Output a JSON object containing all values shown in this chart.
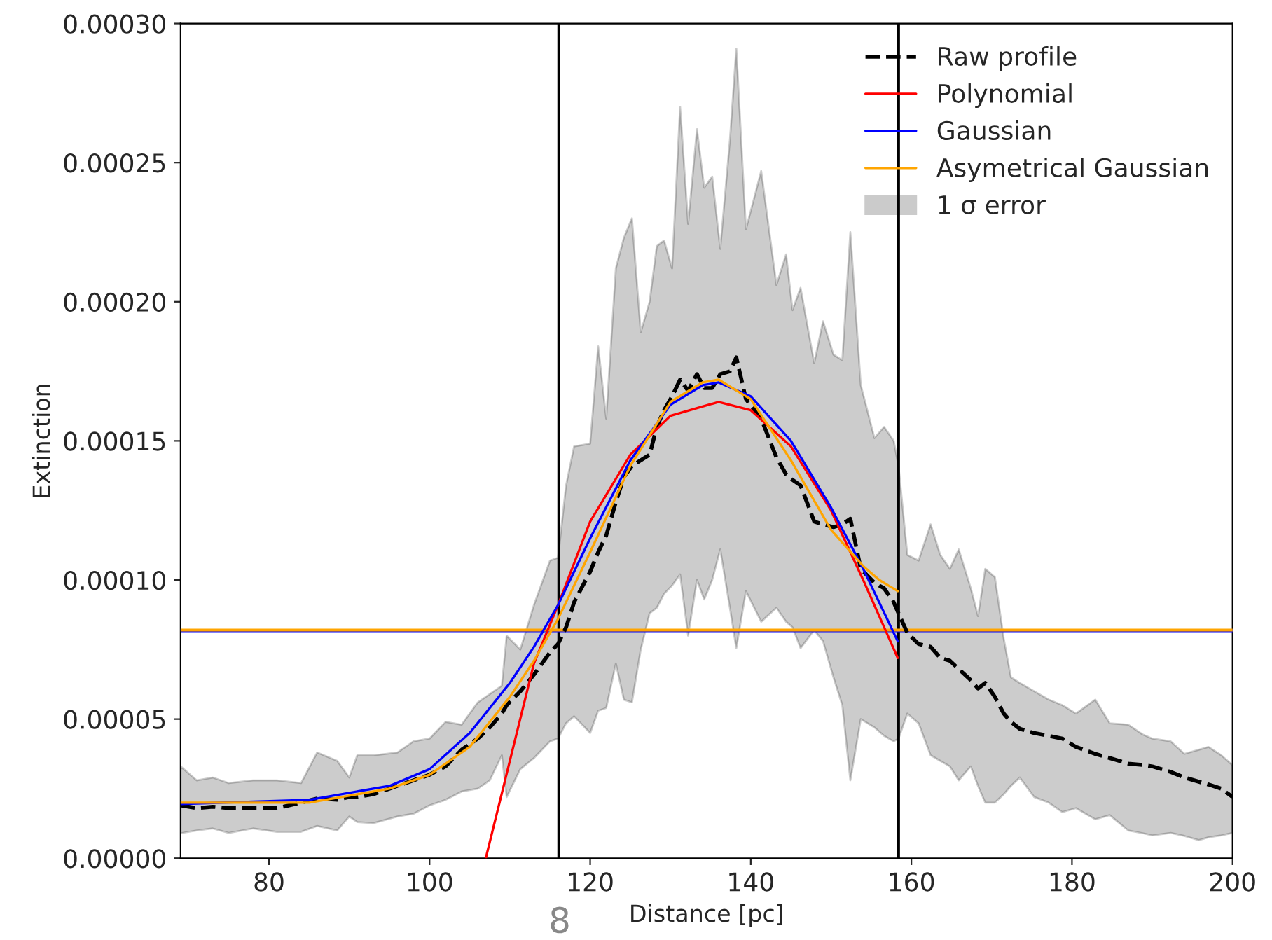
{
  "chart_data": {
    "type": "line",
    "xlabel": "Distance [pc]",
    "ylabel": "Extinction",
    "xlim": [
      69,
      200
    ],
    "xticks": [
      80,
      100,
      120,
      140,
      160,
      180,
      200
    ],
    "ylim": [
      0,
      0.0003
    ],
    "yticks": [
      {
        "value": 0,
        "label": "0.00000"
      },
      {
        "value": 5e-05,
        "label": "0.00005"
      },
      {
        "value": 0.0001,
        "label": "0.00010"
      },
      {
        "value": 0.00015,
        "label": "0.00015"
      },
      {
        "value": 0.0002,
        "label": "0.00020"
      },
      {
        "value": 0.00025,
        "label": "0.00025"
      },
      {
        "value": 0.0003,
        "label": "0.00030"
      }
    ],
    "grid": false,
    "legend": "top right",
    "marker": "none",
    "series": [
      {
        "name": "Raw profile",
        "line_style": "dashed",
        "color": "#000000",
        "x": [
          69,
          71,
          73,
          75,
          78,
          81,
          84,
          86,
          88.5,
          90,
          91,
          93,
          96,
          98,
          100,
          102,
          104,
          106,
          107.5,
          109,
          109.6,
          111.3,
          113,
          115,
          116,
          117,
          118,
          120,
          121,
          122,
          123.2,
          124.2,
          125.2,
          126.3,
          127.4,
          128.3,
          129.2,
          130.2,
          131.2,
          132.2,
          133.3,
          134.2,
          135.2,
          136.2,
          137.4,
          138.2,
          139.4,
          141.3,
          143.2,
          144.4,
          145.2,
          146.2,
          147.9,
          149.0,
          150.3,
          151.4,
          152.4,
          153.7,
          155.4,
          156.6,
          157.8,
          158.4,
          159.5,
          160.9,
          162.4,
          163.6,
          164.8,
          165.9,
          167.4,
          168.3,
          169.2,
          170.4,
          171.5,
          172.4,
          173.5,
          175.3,
          177.1,
          178.8,
          180.5,
          182.9,
          184.7,
          187,
          188.8,
          190,
          192.3,
          194,
          195.8,
          197,
          198.6,
          200
        ],
        "values": [
          1.9e-05,
          1.8e-05,
          1.85e-05,
          1.8e-05,
          1.8e-05,
          1.8e-05,
          2e-05,
          2.15e-05,
          2.1e-05,
          2.2e-05,
          2.2e-05,
          2.3e-05,
          2.6e-05,
          2.8e-05,
          3e-05,
          3.3e-05,
          3.9e-05,
          4.3e-05,
          4.7e-05,
          5.2e-05,
          5.5e-05,
          6e-05,
          6.6e-05,
          7.4e-05,
          7.7e-05,
          8.3e-05,
          9.2e-05,
          0.000103,
          0.00011,
          0.000116,
          0.000128,
          0.000137,
          0.000141,
          0.000143,
          0.000145,
          0.000155,
          0.000161,
          0.000166,
          0.000172,
          0.000168,
          0.000174,
          0.000169,
          0.000169,
          0.000174,
          0.000175,
          0.00018,
          0.000165,
          0.000158,
          0.000144,
          0.000138,
          0.000136,
          0.000134,
          0.000121,
          0.00012,
          0.000119,
          0.00012,
          0.000122,
          0.000104,
          9.9e-05,
          9.7e-05,
          9.2e-05,
          8.8e-05,
          8.1e-05,
          7.7e-05,
          7.6e-05,
          7.2e-05,
          7.1e-05,
          6.8e-05,
          6.4e-05,
          6.1e-05,
          6.3e-05,
          5.8e-05,
          5.2e-05,
          4.9e-05,
          4.65e-05,
          4.5e-05,
          4.4e-05,
          4.3e-05,
          4e-05,
          3.75e-05,
          3.6e-05,
          3.4e-05,
          3.35e-05,
          3.3e-05,
          3.1e-05,
          2.9e-05,
          2.75e-05,
          2.65e-05,
          2.5e-05,
          2.2e-05
        ],
        "upper": [
          3.3e-05,
          2.8e-05,
          2.9e-05,
          2.7e-05,
          2.8e-05,
          2.8e-05,
          2.7e-05,
          3.8e-05,
          3.5e-05,
          2.9e-05,
          3.7e-05,
          3.7e-05,
          3.8e-05,
          4.2e-05,
          4.3e-05,
          4.9e-05,
          4.8e-05,
          5.6e-05,
          5.9e-05,
          6.2e-05,
          8e-05,
          7.5e-05,
          9.1e-05,
          0.000107,
          0.000108,
          0.000134,
          0.000148,
          0.000149,
          0.000184,
          0.000158,
          0.000212,
          0.000223,
          0.00023,
          0.000189,
          0.0002,
          0.00022,
          0.000222,
          0.000212,
          0.00027,
          0.000228,
          0.000262,
          0.000241,
          0.000245,
          0.000219,
          0.000258,
          0.000291,
          0.000226,
          0.000247,
          0.000206,
          0.000217,
          0.000197,
          0.000205,
          0.000178,
          0.000193,
          0.000181,
          0.000179,
          0.000225,
          0.00017,
          0.000151,
          0.000155,
          0.00015,
          0.000141,
          0.000109,
          0.000107,
          0.00012,
          0.000109,
          0.000104,
          0.000111,
          9.7e-05,
          8.7e-05,
          0.000104,
          0.000101,
          7.9e-05,
          6.5e-05,
          6.3e-05,
          6e-05,
          5.7e-05,
          5.5e-05,
          5.2e-05,
          5.7e-05,
          4.85e-05,
          4.8e-05,
          4.45e-05,
          4.3e-05,
          4.2e-05,
          3.75e-05,
          3.9e-05,
          4e-05,
          3.7e-05,
          3.34e-05
        ],
        "lower": [
          9e-06,
          1e-05,
          1.07e-05,
          9.1e-06,
          1.07e-05,
          9.5e-06,
          9.5e-06,
          1.16e-05,
          1e-05,
          1.5e-05,
          1.3e-05,
          1.26e-05,
          1.5e-05,
          1.6e-05,
          1.9e-05,
          2.1e-05,
          2.4e-05,
          2.5e-05,
          2.8e-05,
          3.7e-05,
          2.2e-05,
          3.2e-05,
          3.6e-05,
          4.2e-05,
          4.3e-05,
          4.85e-05,
          5.1e-05,
          4.5e-05,
          5.3e-05,
          5.4e-05,
          7e-05,
          5.7e-05,
          5.6e-05,
          7.5e-05,
          8.8e-05,
          9e-05,
          9.5e-05,
          9.8e-05,
          0.000102,
          8e-05,
          0.0001,
          9.3e-05,
          0.0001,
          0.000111,
          9e-05,
          7.55e-05,
          9.6e-05,
          8.5e-05,
          9e-05,
          8.5e-05,
          8.3e-05,
          7.55e-05,
          8.2e-05,
          7.8e-05,
          6.5e-05,
          5.5e-05,
          2.8e-05,
          5e-05,
          4.7e-05,
          4.4e-05,
          4.2e-05,
          4.3e-05,
          5.2e-05,
          4.85e-05,
          3.7e-05,
          3.5e-05,
          3.3e-05,
          2.8e-05,
          3.3e-05,
          2.6e-05,
          2e-05,
          2e-05,
          2.3e-05,
          2.6e-05,
          2.9e-05,
          2.2e-05,
          2e-05,
          1.66e-05,
          1.8e-05,
          1.4e-05,
          1.55e-05,
          1e-05,
          9e-06,
          8.2e-06,
          9.1e-06,
          8e-06,
          6.5e-06,
          7.5e-06,
          8.2e-06,
          9.1e-06
        ]
      },
      {
        "name": "Polynomial",
        "line_style": "solid",
        "color": "#ff0000",
        "x": [
          107,
          110,
          113,
          116,
          120,
          125,
          130,
          136,
          140,
          145,
          150,
          154,
          158.3
        ],
        "values": [
          0,
          3.5e-05,
          7e-05,
          9.1e-05,
          0.000121,
          0.000145,
          0.000159,
          0.000164,
          0.000161,
          0.000148,
          0.000125,
          0.0001,
          7.2e-05
        ]
      },
      {
        "name": "Gaussian",
        "line_style": "solid",
        "color": "#0000ff",
        "x": [
          69,
          85,
          95,
          100,
          105,
          110,
          113,
          116,
          120,
          125,
          130,
          134,
          136,
          140,
          145,
          150,
          154,
          158.3
        ],
        "values": [
          1.95e-05,
          2.1e-05,
          2.6e-05,
          3.2e-05,
          4.5e-05,
          6.3e-05,
          7.6e-05,
          9.1e-05,
          0.000115,
          0.000143,
          0.000163,
          0.00017,
          0.000171,
          0.000166,
          0.00015,
          0.000126,
          0.000104,
          7.8e-05
        ]
      },
      {
        "name": "Asymetrical Gaussian",
        "line_style": "solid",
        "color": "#ffa500",
        "x": [
          69,
          85,
          95,
          100,
          105,
          110,
          113,
          116,
          120,
          125,
          130,
          134,
          136,
          140,
          145,
          150,
          154,
          156,
          158.3
        ],
        "values": [
          2e-05,
          2e-05,
          2.5e-05,
          3e-05,
          4e-05,
          5.8e-05,
          7.1e-05,
          8.6e-05,
          0.00011,
          0.000141,
          0.000164,
          0.000171,
          0.000172,
          0.000165,
          0.000143,
          0.000118,
          0.000105,
          0.0001,
          9.6e-05
        ]
      }
    ],
    "ref_lines": [
      {
        "axis": "x",
        "value": 116.1,
        "color": "#000000"
      },
      {
        "axis": "x",
        "value": 158.4,
        "color": "#000000"
      },
      {
        "axis": "y",
        "value": 8.18e-05,
        "color": "#0000ff"
      },
      {
        "axis": "y",
        "value": 8.2e-05,
        "color": "#ffa500"
      }
    ],
    "annotations": [
      "1 σ error",
      "8"
    ]
  }
}
